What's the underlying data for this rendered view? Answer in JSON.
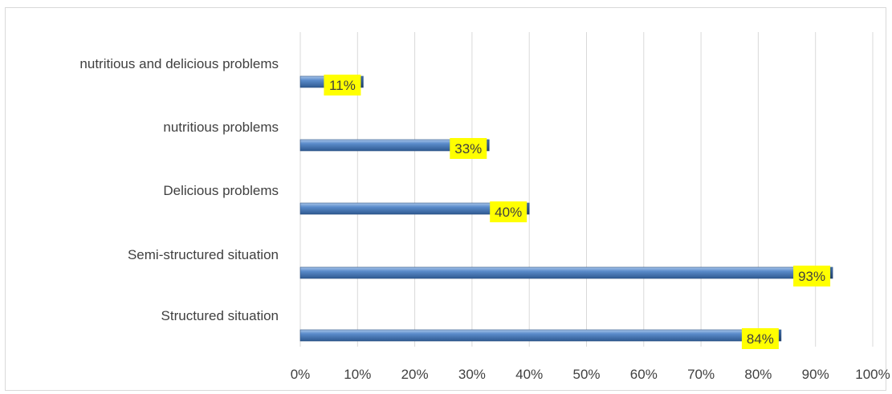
{
  "chart_data": {
    "type": "bar",
    "orientation": "horizontal",
    "categories": [
      "Structured situation",
      "Semi-structured situation",
      "Delicious problems",
      "nutritious problems",
      "nutritious and delicious problems"
    ],
    "values": [
      84,
      93,
      40,
      33,
      11
    ],
    "data_labels": [
      "84%",
      "93%",
      "40%",
      "33%",
      "11%"
    ],
    "x_ticks": [
      "0%",
      "10%",
      "20%",
      "30%",
      "40%",
      "50%",
      "60%",
      "70%",
      "80%",
      "90%",
      "100%"
    ],
    "xlim": [
      0,
      100
    ],
    "title": "",
    "xlabel": "",
    "ylabel": "",
    "grid": "vertical",
    "legend": "none",
    "colors": {
      "bar": "#4f81bd",
      "bar_dark": "#2a4f80",
      "bar_light": "#9dbde6",
      "label_bg": "#ffff00",
      "label_text": "#404040",
      "grid": "#d9d9d9",
      "text": "#404040"
    }
  }
}
